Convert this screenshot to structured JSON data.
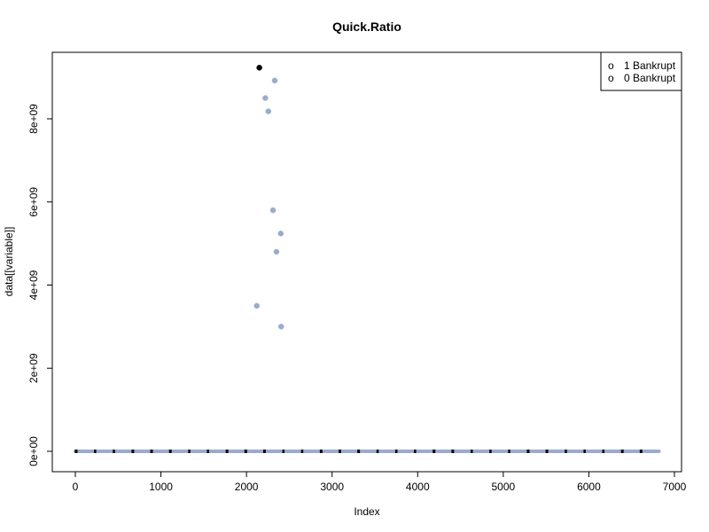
{
  "chart_data": {
    "type": "scatter",
    "title": "Quick.Ratio",
    "xlabel": "Index",
    "ylabel": "data[[variable]]",
    "xlim": [
      0,
      7000
    ],
    "ylim": [
      0,
      9300000000
    ],
    "x_ticks": [
      0,
      1000,
      2000,
      3000,
      4000,
      5000,
      6000,
      7000
    ],
    "x_tick_labels": [
      "0",
      "1000",
      "2000",
      "3000",
      "4000",
      "5000",
      "6000",
      "7000"
    ],
    "y_ticks": [
      0,
      2000000000,
      4000000000,
      6000000000,
      8000000000
    ],
    "y_tick_labels": [
      "0e+00",
      "2e+09",
      "4e+09",
      "6e+09",
      "8e+09"
    ],
    "grid": false,
    "legend": {
      "position": "top-right",
      "entries": [
        {
          "symbol": "o",
          "label": "1 Bankrupt",
          "color": "#000000"
        },
        {
          "symbol": "o",
          "label": "0 Bankrupt",
          "color": "#9aaccc"
        }
      ]
    },
    "series": [
      {
        "name": "1 Bankrupt",
        "color": "#000000",
        "points": [
          {
            "x": 2150,
            "y": 9230000000
          }
        ],
        "baseline": {
          "x_min": 0,
          "x_max": 6819,
          "y": 0
        }
      },
      {
        "name": "0 Bankrupt",
        "color": "#9aaccc",
        "points": [
          {
            "x": 2120,
            "y": 3500000000
          },
          {
            "x": 2220,
            "y": 8500000000
          },
          {
            "x": 2255,
            "y": 8180000000
          },
          {
            "x": 2310,
            "y": 5800000000
          },
          {
            "x": 2330,
            "y": 8920000000
          },
          {
            "x": 2350,
            "y": 4800000000
          },
          {
            "x": 2400,
            "y": 5240000000
          },
          {
            "x": 2405,
            "y": 3000000000
          }
        ],
        "baseline": {
          "x_min": 0,
          "x_max": 6819,
          "y": 0
        }
      }
    ]
  }
}
